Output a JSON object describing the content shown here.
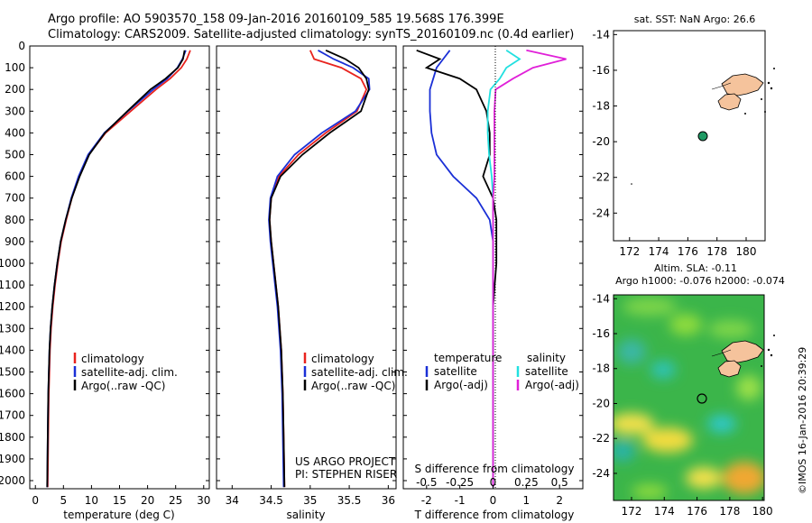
{
  "header": {
    "line1": "Argo profile: AO 5903570_158 09-Jan-2016 20160109_585 19.568S 176.399E",
    "line2": "Climatology: CARS2009. Satellite-adjusted climatology: synTS_20160109.nc (0.4d earlier)"
  },
  "colors": {
    "climatology": "#e8231e",
    "satellite": "#1a2fd6",
    "argo": "#000000",
    "satellite_s": "#22e0e0",
    "argo_s": "#e020d8",
    "float_marker": "#1f9a64",
    "land": "#f5c39c"
  },
  "panels": {
    "temperature": {
      "xlabel": "temperature (deg C)",
      "xticks": [
        "0",
        "5",
        "10",
        "15",
        "20",
        "25",
        "30"
      ],
      "legend": [
        "climatology",
        "satellite-adj. clim.",
        "Argo(..raw -QC)"
      ]
    },
    "salinity": {
      "xlabel": "salinity",
      "xticks": [
        "34",
        "34.5",
        "35",
        "35.5",
        "36"
      ],
      "legend": [
        "climatology",
        "satellite-adj. clim.",
        "Argo(..raw -QC)"
      ],
      "credit1": "US ARGO PROJECT",
      "credit2": "PI: STEPHEN RISER"
    },
    "difference": {
      "xlabel": "T difference from climatology",
      "toplabel": "S difference from climatology",
      "xticks_bottom": [
        "-2",
        "-1",
        "0",
        "1",
        "2"
      ],
      "xticks_top": [
        "-0.5",
        "-0.25",
        "0",
        "0.25",
        "0.5"
      ],
      "legend_temp_head": "temperature",
      "legend_sal_head": "salinity",
      "legend_temp": [
        "satellite",
        "Argo(-adj)"
      ],
      "legend_sal": [
        "satellite",
        "Argo(-adj)"
      ]
    },
    "depth_ticks": [
      "0",
      "100",
      "200",
      "300",
      "400",
      "500",
      "600",
      "700",
      "800",
      "900",
      "1000",
      "1100",
      "1200",
      "1300",
      "1400",
      "1500",
      "1600",
      "1700",
      "1800",
      "1900",
      "2000"
    ]
  },
  "map_top": {
    "title": "sat. SST: NaN Argo: 26.6",
    "yticks": [
      "-14",
      "-16",
      "-18",
      "-20",
      "-22",
      "-24"
    ],
    "xticks": [
      "172",
      "174",
      "176",
      "178",
      "180"
    ]
  },
  "map_bottom": {
    "title1": "Altim. SLA: -0.11",
    "title2": "Argo h1000: -0.076 h2000: -0.074",
    "yticks": [
      "-14",
      "-16",
      "-18",
      "-20",
      "-22",
      "-24"
    ],
    "xticks": [
      "172",
      "174",
      "176",
      "178",
      "180"
    ]
  },
  "watermark": "©IMOS 16-Jan-2016 20:39:29",
  "chart_data": [
    {
      "type": "line",
      "title": "",
      "xlabel": "temperature (deg C)",
      "ylabel": "",
      "xlim": [
        -1,
        31
      ],
      "ylim": [
        2070,
        0
      ],
      "series": [
        {
          "name": "climatology",
          "x": [
            27.6,
            27,
            26,
            24,
            21.5,
            17,
            12.5,
            9.5,
            7.8,
            6.5,
            5.5,
            4.6,
            4.0,
            3.5,
            3.1,
            2.8,
            2.6,
            2.4,
            2.3,
            2.2
          ],
          "y": [
            20,
            60,
            100,
            150,
            200,
            300,
            400,
            500,
            600,
            700,
            800,
            900,
            1000,
            1100,
            1200,
            1300,
            1400,
            1600,
            1800,
            2030
          ]
        },
        {
          "name": "satellite-adj. clim.",
          "x": [
            26.8,
            26.2,
            25.3,
            23.5,
            21,
            16.5,
            12.3,
            9.4,
            7.7,
            6.4,
            5.4,
            4.5,
            3.9,
            3.4,
            3.0,
            2.7,
            2.5,
            2.3,
            2.2,
            2.1
          ],
          "y": [
            20,
            60,
            100,
            150,
            200,
            300,
            400,
            500,
            600,
            700,
            800,
            900,
            1000,
            1100,
            1200,
            1300,
            1400,
            1600,
            1800,
            2030
          ]
        },
        {
          "name": "Argo(..raw -QC)",
          "x": [
            26.6,
            26.3,
            25.4,
            23.2,
            20.5,
            16.4,
            12.4,
            9.6,
            7.9,
            6.5,
            5.4,
            4.5,
            3.9,
            3.4,
            3.0,
            2.7,
            2.5,
            2.3,
            2.2,
            2.1
          ],
          "y": [
            20,
            60,
            100,
            150,
            200,
            300,
            400,
            500,
            600,
            700,
            800,
            900,
            1000,
            1100,
            1200,
            1300,
            1400,
            1600,
            1800,
            2030
          ]
        }
      ]
    },
    {
      "type": "line",
      "title": "",
      "xlabel": "salinity",
      "ylabel": "",
      "xlim": [
        33.8,
        36.1
      ],
      "ylim": [
        2070,
        0
      ],
      "series": [
        {
          "name": "climatology",
          "x": [
            35.0,
            35.05,
            35.4,
            35.65,
            35.72,
            35.6,
            35.2,
            34.85,
            34.6,
            34.5,
            34.48,
            34.5,
            34.53,
            34.56,
            34.59,
            34.61,
            34.63,
            34.65,
            34.66,
            34.67
          ],
          "y": [
            20,
            60,
            100,
            150,
            200,
            300,
            400,
            500,
            600,
            700,
            800,
            900,
            1000,
            1100,
            1200,
            1300,
            1400,
            1600,
            1800,
            2030
          ]
        },
        {
          "name": "satellite-adj. clim.",
          "x": [
            35.1,
            35.3,
            35.55,
            35.75,
            35.76,
            35.58,
            35.15,
            34.8,
            34.58,
            34.49,
            34.47,
            34.49,
            34.52,
            34.55,
            34.58,
            34.6,
            34.62,
            34.64,
            34.65,
            34.66
          ],
          "y": [
            20,
            60,
            100,
            150,
            200,
            300,
            400,
            500,
            600,
            700,
            800,
            900,
            1000,
            1100,
            1200,
            1300,
            1400,
            1600,
            1800,
            2030
          ]
        },
        {
          "name": "Argo(..raw -QC)",
          "x": [
            35.2,
            35.45,
            35.62,
            35.72,
            35.75,
            35.65,
            35.25,
            34.9,
            34.62,
            34.5,
            34.48,
            34.5,
            34.53,
            34.56,
            34.59,
            34.61,
            34.63,
            34.65,
            34.66,
            34.67
          ],
          "y": [
            20,
            60,
            100,
            150,
            200,
            300,
            400,
            500,
            600,
            700,
            800,
            900,
            1000,
            1100,
            1200,
            1300,
            1400,
            1600,
            1800,
            2030
          ]
        }
      ]
    },
    {
      "type": "line",
      "title": "",
      "xlabel": "T difference from climatology",
      "ylabel": "",
      "xlim": [
        -2.7,
        2.7
      ],
      "ylim": [
        2070,
        0
      ],
      "series": [
        {
          "name": "satellite",
          "x": [
            -1.3,
            -1.5,
            -1.7,
            -1.8,
            -1.9,
            -1.9,
            -1.85,
            -1.7,
            -1.2,
            -0.5,
            -0.1,
            0,
            0,
            0,
            0,
            0,
            0,
            0,
            0,
            0
          ],
          "y": [
            20,
            60,
            100,
            150,
            200,
            300,
            400,
            500,
            600,
            700,
            800,
            900,
            1000,
            1100,
            1200,
            1300,
            1400,
            1600,
            1800,
            2030
          ]
        },
        {
          "name": "Argo(-adj)",
          "x": [
            -2.3,
            -1.6,
            -2.0,
            -1.0,
            -0.5,
            -0.2,
            -0.1,
            -0.1,
            -0.3,
            0,
            0.1,
            0.1,
            0.1,
            0.05,
            0,
            0,
            0,
            0,
            0,
            0
          ],
          "y": [
            20,
            60,
            100,
            150,
            200,
            300,
            400,
            500,
            600,
            700,
            800,
            900,
            1000,
            1100,
            1200,
            1300,
            1400,
            1600,
            1800,
            2030
          ]
        }
      ]
    },
    {
      "type": "line",
      "title": "",
      "xlabel": "S difference from climatology",
      "ylabel": "",
      "xlim": [
        -0.675,
        0.675
      ],
      "ylim": [
        2070,
        0
      ],
      "series": [
        {
          "name": "satellite",
          "x": [
            0.1,
            0.2,
            0.1,
            0.05,
            -0.02,
            -0.04,
            -0.04,
            -0.03,
            -0.01,
            0,
            0,
            0,
            0,
            0,
            0,
            0,
            0,
            0,
            0,
            0
          ],
          "y": [
            20,
            60,
            100,
            150,
            200,
            300,
            400,
            500,
            600,
            700,
            800,
            900,
            1000,
            1100,
            1200,
            1300,
            1400,
            1600,
            1800,
            2030
          ]
        },
        {
          "name": "Argo(-adj)",
          "x": [
            0.25,
            0.55,
            0.3,
            0.15,
            0.02,
            0.01,
            0.01,
            0.01,
            0.01,
            0,
            0,
            0,
            0,
            0,
            0,
            0,
            0,
            0,
            0,
            0
          ],
          "y": [
            20,
            60,
            100,
            150,
            200,
            300,
            400,
            500,
            600,
            700,
            800,
            900,
            1000,
            1100,
            1200,
            1300,
            1400,
            1600,
            1800,
            2030
          ]
        }
      ]
    }
  ]
}
